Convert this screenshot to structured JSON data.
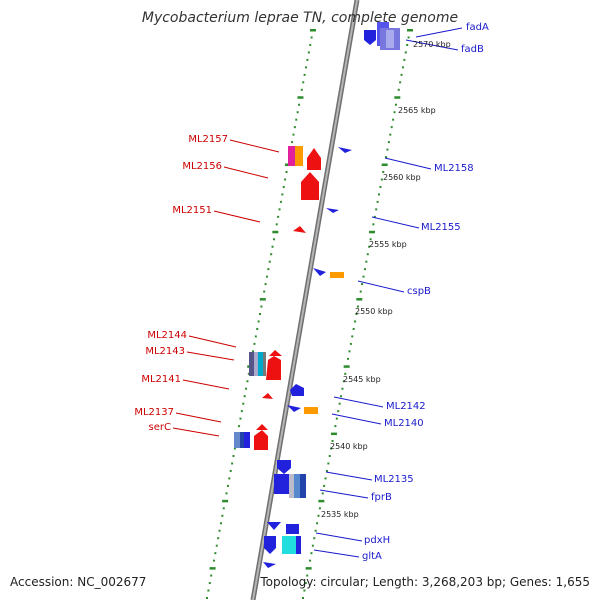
{
  "title": "Mycobacterium leprae TN, complete genome",
  "footer": {
    "accession": "Accession: NC_002677",
    "stats": "Topology: circular; Length: 3,268,203 bp; Genes: 1,655"
  },
  "colors": {
    "left_label": "#cc0000",
    "right_label": "#1a1acc",
    "tick_green": "#2e8b2e",
    "backbone": "#8a8a8a"
  },
  "kbp_labels": [
    "2570 kbp",
    "2565 kbp",
    "2560 kbp",
    "2555 kbp",
    "2550 kbp",
    "2545 kbp",
    "2540 kbp",
    "2535 kbp"
  ],
  "left_genes": [
    "ML2157",
    "ML2156",
    "ML2151",
    "ML2144",
    "ML2143",
    "ML2141",
    "ML2137",
    "serC"
  ],
  "right_genes": [
    "fadA",
    "fadB",
    "ML2158",
    "ML2155",
    "cspB",
    "ML2142",
    "ML2140",
    "ML2135",
    "fprB",
    "pdxH",
    "gltA"
  ]
}
